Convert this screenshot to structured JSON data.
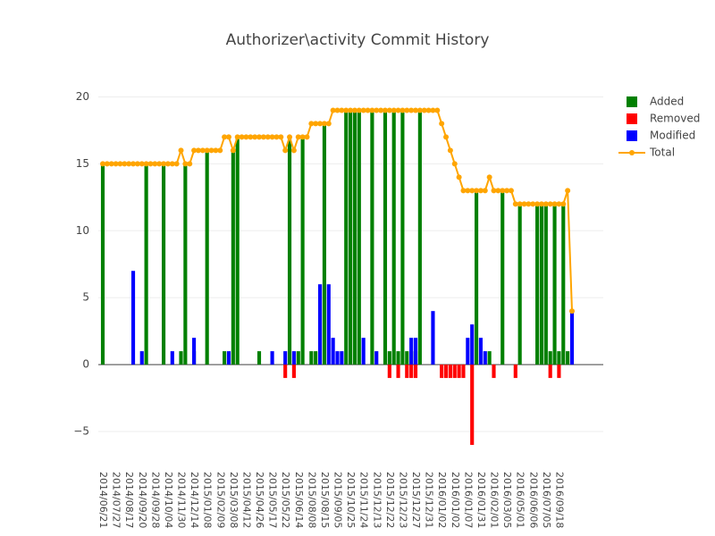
{
  "chart_data": {
    "type": "bar",
    "title": "Authorizer\\activity Commit History",
    "categories": [
      "2014/06/21",
      null,
      null,
      "2014/07/27",
      null,
      null,
      "2014/08/17",
      null,
      null,
      "2014/09/20",
      null,
      null,
      "2014/09/28",
      null,
      null,
      "2014/10/04",
      null,
      null,
      "2014/11/30",
      null,
      null,
      "2014/12/14",
      null,
      null,
      "2015/01/08",
      null,
      null,
      "2015/02/09",
      null,
      null,
      "2015/03/08",
      null,
      null,
      "2015/04/12",
      null,
      null,
      "2015/04/26",
      null,
      null,
      "2015/05/17",
      null,
      null,
      "2015/05/22",
      null,
      null,
      "2015/06/14",
      null,
      null,
      "2015/08/08",
      null,
      null,
      "2015/08/15",
      null,
      null,
      "2015/09/05",
      null,
      null,
      "2015/10/25",
      null,
      null,
      "2015/11/24",
      null,
      null,
      "2015/12/13",
      null,
      null,
      "2015/12/22",
      null,
      null,
      "2015/12/23",
      null,
      null,
      "2015/12/27",
      null,
      null,
      "2015/12/31",
      null,
      null,
      "2016/01/02",
      null,
      null,
      "2016/01/02",
      null,
      null,
      "2016/01/07",
      null,
      null,
      "2016/01/31",
      null,
      null,
      "2016/02/01",
      null,
      null,
      "2016/03/05",
      null,
      null,
      "2016/05/01",
      null,
      null,
      "2016/06/06",
      null,
      null,
      "2016/07/05",
      null,
      null,
      "2016/09/18",
      null,
      null,
      null
    ],
    "series": [
      {
        "name": "Added",
        "color": "#008000",
        "type": "bar",
        "values": [
          15,
          0,
          0,
          0,
          0,
          0,
          0,
          0,
          0,
          0,
          15,
          0,
          0,
          0,
          15,
          0,
          0,
          0,
          1,
          15,
          0,
          1,
          0,
          0,
          16,
          0,
          0,
          0,
          1,
          0,
          16,
          17,
          0,
          0,
          0,
          0,
          1,
          0,
          0,
          0,
          0,
          0,
          0,
          17,
          0,
          1,
          17,
          0,
          1,
          1,
          0,
          18,
          0,
          0,
          0,
          0,
          19,
          19,
          19,
          19,
          0,
          0,
          19,
          0,
          0,
          19,
          1,
          19,
          1,
          19,
          1,
          1,
          1,
          19,
          0,
          0,
          0,
          0,
          0,
          0,
          0,
          0,
          0,
          0,
          0,
          0,
          13,
          0,
          0,
          1,
          0,
          0,
          13,
          0,
          0,
          0,
          12,
          0,
          0,
          0,
          12,
          12,
          12,
          1,
          12,
          1,
          12,
          1,
          0
        ]
      },
      {
        "name": "Removed",
        "color": "#ff0000",
        "type": "bar",
        "values": [
          0,
          0,
          0,
          0,
          0,
          0,
          0,
          0,
          0,
          0,
          0,
          0,
          0,
          0,
          0,
          0,
          0,
          0,
          0,
          0,
          0,
          0,
          0,
          0,
          0,
          0,
          0,
          0,
          0,
          0,
          0,
          0,
          0,
          0,
          0,
          0,
          0,
          0,
          0,
          0,
          0,
          0,
          -1,
          0,
          -1,
          0,
          0,
          0,
          0,
          0,
          0,
          0,
          0,
          0,
          0,
          0,
          0,
          0,
          0,
          0,
          0,
          0,
          0,
          0,
          0,
          0,
          -1,
          0,
          -1,
          0,
          -1,
          -1,
          -1,
          0,
          0,
          0,
          0,
          0,
          -1,
          -1,
          -1,
          -1,
          -1,
          -1,
          0,
          -6,
          0,
          0,
          0,
          0,
          -1,
          0,
          0,
          0,
          0,
          -1,
          0,
          0,
          0,
          0,
          0,
          0,
          0,
          -1,
          0,
          -1,
          0,
          0,
          0
        ]
      },
      {
        "name": "Modified",
        "color": "#0000ff",
        "type": "bar",
        "values": [
          0,
          0,
          0,
          0,
          0,
          0,
          0,
          7,
          0,
          1,
          0,
          0,
          0,
          0,
          0,
          0,
          1,
          0,
          0,
          0,
          0,
          2,
          0,
          0,
          0,
          0,
          0,
          0,
          0,
          1,
          0,
          0,
          0,
          0,
          0,
          0,
          0,
          0,
          0,
          1,
          0,
          0,
          1,
          0,
          1,
          0,
          0,
          0,
          0,
          0,
          6,
          0,
          6,
          2,
          1,
          1,
          0,
          0,
          0,
          0,
          2,
          0,
          0,
          1,
          0,
          0,
          0,
          0,
          0,
          0,
          0,
          2,
          2,
          0,
          0,
          0,
          4,
          0,
          0,
          0,
          0,
          0,
          0,
          0,
          2,
          3,
          0,
          2,
          1,
          0,
          0,
          0,
          0,
          0,
          0,
          0,
          0,
          0,
          0,
          0,
          0,
          0,
          0,
          0,
          0,
          0,
          0,
          0,
          4
        ]
      },
      {
        "name": "Total",
        "color": "#ffa500",
        "type": "line",
        "values": [
          15,
          15,
          15,
          15,
          15,
          15,
          15,
          15,
          15,
          15,
          15,
          15,
          15,
          15,
          15,
          15,
          15,
          15,
          16,
          15,
          15,
          16,
          16,
          16,
          16,
          16,
          16,
          16,
          17,
          17,
          16,
          17,
          17,
          17,
          17,
          17,
          17,
          17,
          17,
          17,
          17,
          17,
          16,
          17,
          16,
          17,
          17,
          17,
          18,
          18,
          18,
          18,
          18,
          19,
          19,
          19,
          19,
          19,
          19,
          19,
          19,
          19,
          19,
          19,
          19,
          19,
          19,
          19,
          19,
          19,
          19,
          19,
          19,
          19,
          19,
          19,
          19,
          19,
          18,
          17,
          16,
          15,
          14,
          13,
          13,
          13,
          13,
          13,
          13,
          14,
          13,
          13,
          13,
          13,
          13,
          12,
          12,
          12,
          12,
          12,
          12,
          12,
          12,
          12,
          12,
          12,
          12,
          13,
          4
        ]
      }
    ],
    "ylim": [
      -6.8,
      21.9
    ],
    "yticks": [
      {
        "value": -5,
        "label": "−5"
      },
      0,
      5,
      10,
      15,
      20
    ],
    "grid": true,
    "legend": "right"
  }
}
